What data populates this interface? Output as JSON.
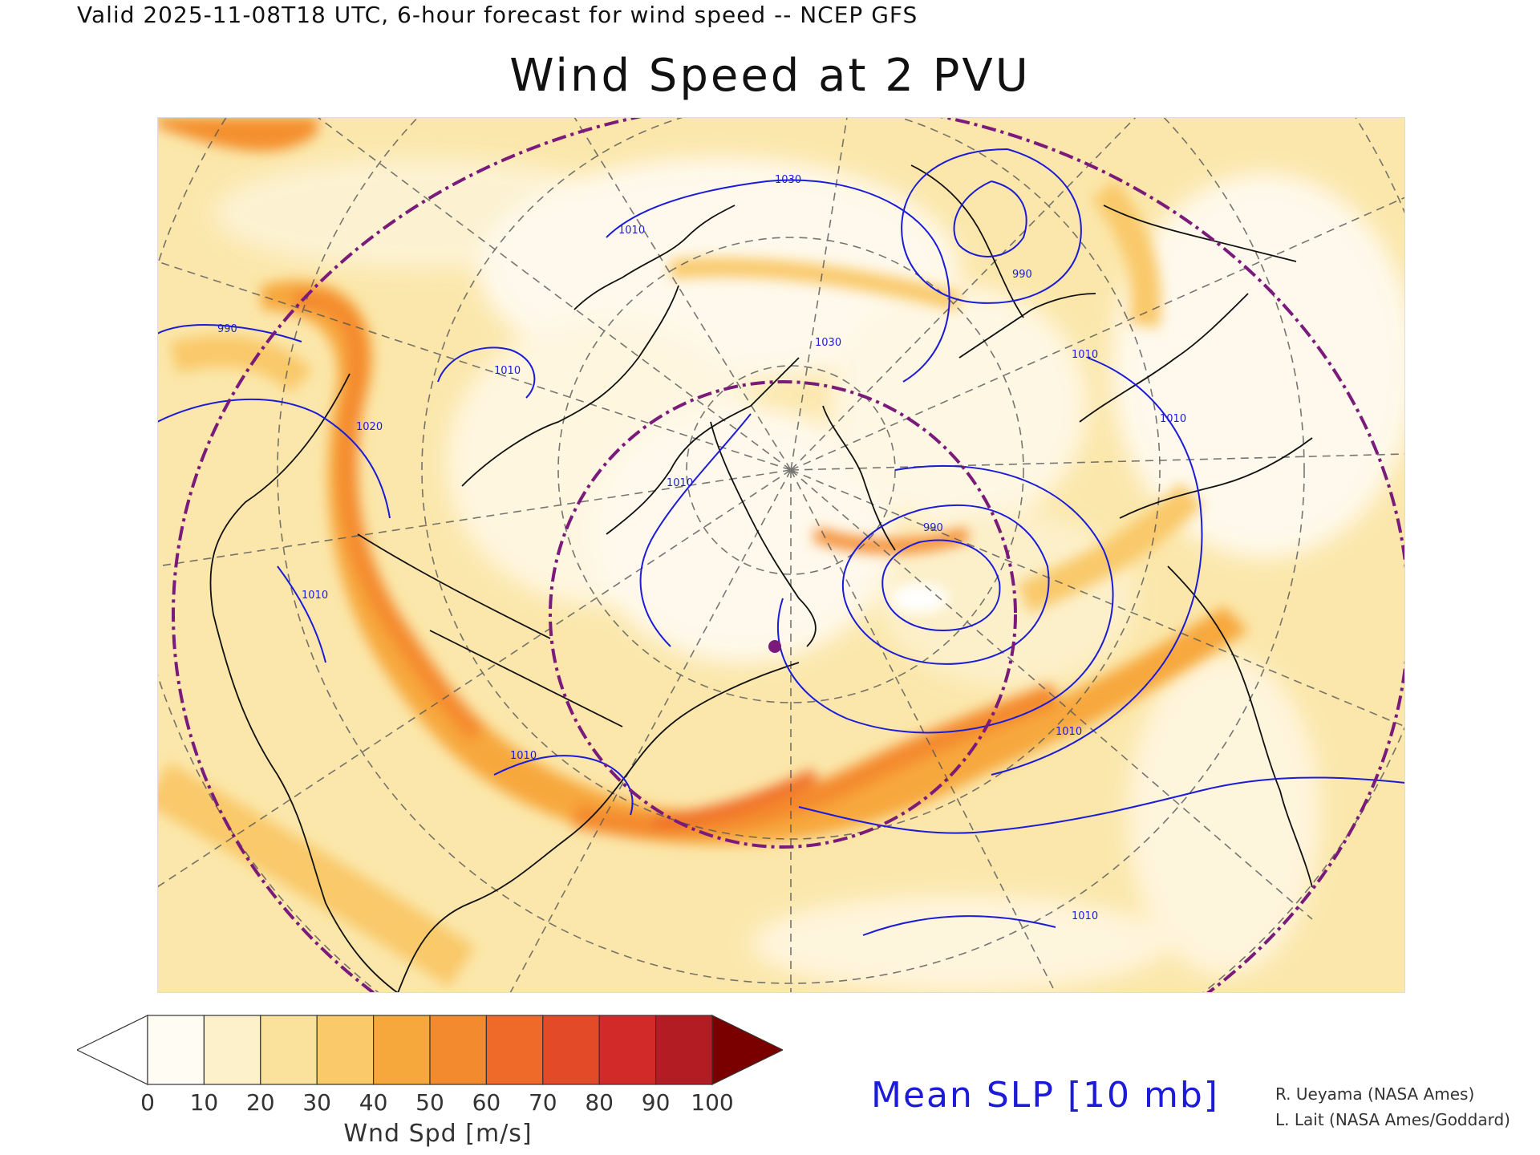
{
  "header": {
    "valid_line": "Valid 2025-11-08T18 UTC, 6-hour forecast for wind speed -- NCEP GFS",
    "title": "Wind Speed at 2 PVU"
  },
  "map": {
    "field": "wind speed at 2 PVU",
    "projection": "polar stereographic",
    "contour_color": "#1b1bd8",
    "range_ring_color": "#7a1a7a",
    "marker_color": "#7a1a7a",
    "slp_contour_labels": [
      "1010",
      "1030",
      "990",
      "1020",
      "1010",
      "990",
      "1010",
      "1030",
      "1010",
      "1010",
      "1010",
      "990",
      "1010",
      "1010",
      "1010"
    ]
  },
  "colorbar": {
    "title": "Wnd Spd [m/s]",
    "ticks": [
      "0",
      "10",
      "20",
      "30",
      "40",
      "50",
      "60",
      "70",
      "80",
      "90",
      "100"
    ],
    "under_color": "#ffffff",
    "over_color": "#7a0000",
    "colors": [
      "#fffdf3",
      "#fdf1cc",
      "#fbe29c",
      "#f9c96a",
      "#f7a83c",
      "#f48a2e",
      "#ef6a28",
      "#e24a28",
      "#d12a28",
      "#b31c22"
    ]
  },
  "slp_legend": {
    "label": "Mean SLP [10 mb]"
  },
  "credits": {
    "line1": "R. Ueyama (NASA Ames)",
    "line2": "L. Lait (NASA Ames/Goddard)"
  }
}
